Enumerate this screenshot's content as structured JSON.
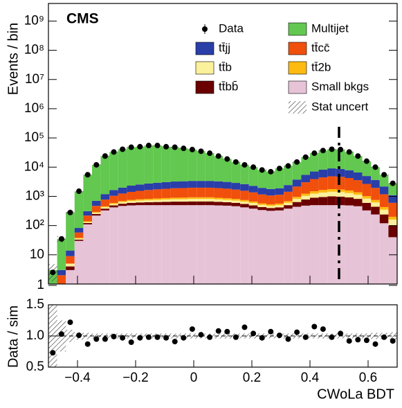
{
  "chart_data": [
    {
      "type": "histogram",
      "title": "CMS",
      "ylabel": "Events / bin",
      "log_y": true,
      "bins": [
        -0.5,
        -0.47,
        -0.44,
        -0.41,
        -0.38,
        -0.35,
        -0.32,
        -0.29,
        -0.26,
        -0.23,
        -0.2,
        -0.17,
        -0.14,
        -0.11,
        -0.08,
        -0.05,
        -0.02,
        0.01,
        0.04,
        0.07,
        0.1,
        0.13,
        0.16,
        0.19,
        0.22,
        0.25,
        0.28,
        0.31,
        0.34,
        0.37,
        0.4,
        0.43,
        0.46,
        0.49,
        0.52,
        0.55,
        0.58,
        0.61,
        0.64,
        0.67,
        0.7
      ],
      "xlim": [
        -0.5,
        0.7
      ],
      "ylim": [
        1,
        4000000000
      ],
      "yticks": [
        1,
        10,
        {
          "value": 100,
          "label": "10²"
        },
        {
          "value": 1000,
          "label": "10³"
        },
        {
          "value": 10000,
          "label": "10⁴"
        },
        {
          "value": 100000,
          "label": "10⁵"
        },
        {
          "value": 1000000,
          "label": "10⁶"
        },
        {
          "value": 10000000,
          "label": "10⁷"
        },
        {
          "value": 100000000,
          "label": "10⁸"
        },
        {
          "value": 1000000000,
          "label": "10⁹"
        }
      ],
      "vline_x": 0.5,
      "series": [
        {
          "name": "Small bkgs",
          "color": "#e6c3d6",
          "values": [
            0,
            1,
            3,
            30,
            110,
            220,
            330,
            420,
            470,
            490,
            500,
            500,
            500,
            500,
            500,
            500,
            500,
            500,
            500,
            490,
            480,
            460,
            420,
            380,
            340,
            320,
            330,
            380,
            440,
            480,
            500,
            500,
            500,
            500,
            490,
            460,
            330,
            240,
            120,
            40
          ]
        },
        {
          "name": "tt̄bb̄",
          "color": "#6b0000",
          "values": [
            0,
            0,
            1,
            3,
            12,
            30,
            50,
            70,
            90,
            110,
            120,
            130,
            140,
            150,
            160,
            160,
            170,
            170,
            170,
            160,
            150,
            140,
            130,
            110,
            90,
            80,
            90,
            120,
            200,
            300,
            400,
            450,
            500,
            480,
            430,
            360,
            270,
            200,
            120,
            60
          ]
        },
        {
          "name": "tt̄b",
          "color": "#fbf09c",
          "values": [
            0,
            0,
            1,
            3,
            10,
            25,
            45,
            60,
            75,
            90,
            100,
            110,
            120,
            130,
            140,
            140,
            150,
            150,
            150,
            140,
            130,
            120,
            110,
            100,
            80,
            70,
            80,
            100,
            180,
            260,
            340,
            400,
            440,
            420,
            380,
            320,
            240,
            180,
            110,
            60
          ]
        },
        {
          "name": "tt̄2b",
          "color": "#fdbb10",
          "values": [
            0,
            0,
            0,
            2,
            8,
            18,
            30,
            45,
            55,
            65,
            75,
            80,
            90,
            95,
            100,
            105,
            110,
            110,
            110,
            105,
            100,
            95,
            85,
            75,
            65,
            60,
            65,
            85,
            140,
            200,
            260,
            300,
            330,
            320,
            290,
            240,
            180,
            130,
            80,
            40
          ]
        },
        {
          "name": "tt̄cc̄",
          "color": "#f0500c",
          "values": [
            0,
            1,
            4,
            20,
            80,
            180,
            320,
            450,
            560,
            670,
            750,
            830,
            890,
            940,
            1000,
            1020,
            1050,
            1050,
            1050,
            1020,
            970,
            890,
            810,
            700,
            590,
            540,
            570,
            750,
            1200,
            1800,
            2400,
            2800,
            3100,
            2950,
            2650,
            2200,
            1650,
            1200,
            750,
            400
          ]
        },
        {
          "name": "tt̄jj",
          "color": "#2a3ea8",
          "values": [
            1,
            1,
            5,
            25,
            90,
            230,
            420,
            600,
            750,
            900,
            1000,
            1100,
            1170,
            1250,
            1320,
            1360,
            1400,
            1400,
            1400,
            1360,
            1290,
            1180,
            1070,
            930,
            790,
            720,
            760,
            1000,
            1600,
            2400,
            3200,
            3800,
            4200,
            4000,
            3600,
            3000,
            2300,
            1700,
            1000,
            500
          ]
        },
        {
          "name": "Multijet",
          "color": "#62c84f",
          "values": [
            2,
            32,
            270,
            1400,
            5200,
            11300,
            22800,
            31400,
            39000,
            45700,
            47500,
            52300,
            52100,
            47000,
            44800,
            40700,
            36600,
            31600,
            26600,
            20700,
            15900,
            12100,
            9400,
            7700,
            6000,
            5200,
            7100,
            8600,
            11200,
            16600,
            22900,
            28700,
            31900,
            31300,
            25200,
            17400,
            11000,
            6300,
            3300,
            1700
          ]
        }
      ],
      "data": {
        "name": "Data",
        "values": [
          2.5,
          35,
          280,
          1500,
          5500,
          12000,
          24000,
          33000,
          41000,
          48000,
          50000,
          55000,
          55000,
          50000,
          48000,
          44000,
          40000,
          35000,
          30000,
          24000,
          19000,
          15000,
          12000,
          10000,
          8000,
          7000,
          9000,
          11000,
          15000,
          22000,
          30000,
          37000,
          41000,
          40000,
          33000,
          24000,
          16000,
          10000,
          5500,
          2800
        ]
      },
      "stat_uncert": {
        "name": "Stat uncert",
        "values": [
          0.6,
          0.25,
          0.1,
          0.06,
          0.05,
          0.04,
          0.04,
          0.04,
          0.04,
          0.04,
          0.04,
          0.04,
          0.04,
          0.04,
          0.04,
          0.04,
          0.04,
          0.04,
          0.04,
          0.04,
          0.04,
          0.04,
          0.04,
          0.04,
          0.04,
          0.04,
          0.04,
          0.04,
          0.04,
          0.04,
          0.04,
          0.04,
          0.04,
          0.04,
          0.04,
          0.04,
          0.04,
          0.05,
          0.05,
          0.06
        ]
      }
    },
    {
      "type": "scatter",
      "xlabel": "CWoLa BDT",
      "ylabel": "Data / sim",
      "xlim": [
        -0.5,
        0.7
      ],
      "ylim": [
        0.5,
        1.5
      ],
      "xticks": [
        {
          "value": -0.4,
          "label": "−0.4"
        },
        {
          "value": -0.2,
          "label": "−0.2"
        },
        0,
        0.2,
        0.4,
        0.6
      ],
      "yticks": [
        0.5,
        {
          "value": 1,
          "label": "1.0"
        },
        1.5
      ],
      "x": [
        -0.485,
        -0.455,
        -0.425,
        -0.395,
        -0.365,
        -0.335,
        -0.305,
        -0.275,
        -0.245,
        -0.215,
        -0.185,
        -0.155,
        -0.125,
        -0.095,
        -0.065,
        -0.035,
        -0.005,
        0.025,
        0.055,
        0.085,
        0.115,
        0.145,
        0.175,
        0.205,
        0.235,
        0.265,
        0.295,
        0.325,
        0.355,
        0.385,
        0.415,
        0.445,
        0.475,
        0.505,
        0.535,
        0.565,
        0.595,
        0.625,
        0.655,
        0.685
      ],
      "values": [
        0.73,
        1.03,
        1.22,
        1.01,
        0.87,
        0.95,
        0.95,
        0.99,
        0.97,
        0.9,
        0.97,
        0.98,
        0.98,
        0.97,
        0.91,
        0.97,
        1.11,
        1.02,
        0.98,
        1.08,
        1.07,
        0.98,
        1.14,
        1.04,
        0.97,
        1.07,
        1.01,
        0.95,
        1.06,
        0.98,
        1.15,
        1.11,
        0.98,
        1.04,
        0.92,
        0.94,
        0.93,
        0.87,
        0.98,
        0.92
      ]
    }
  ]
}
